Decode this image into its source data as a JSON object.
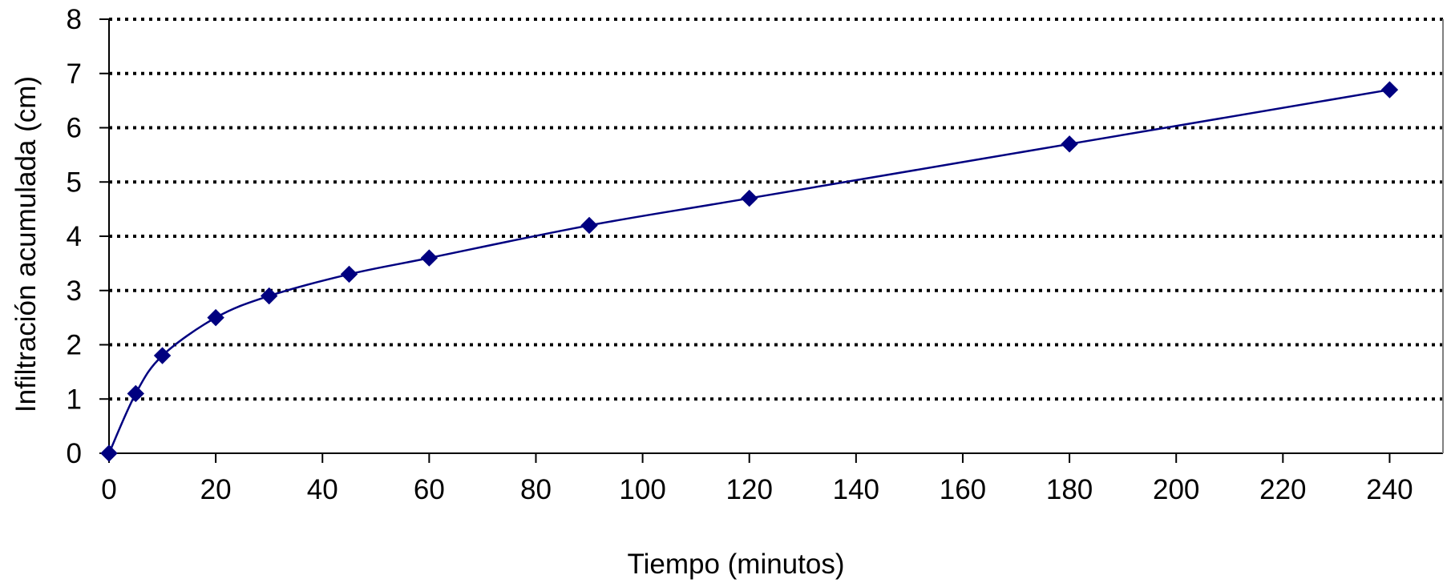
{
  "chart_data": {
    "type": "line",
    "title": "",
    "xlabel": "Tiempo (minutos)",
    "ylabel": "Infiltración acumulada (cm)",
    "xlim": [
      0,
      250
    ],
    "ylim": [
      0,
      8
    ],
    "xticks": [
      0,
      20,
      40,
      60,
      80,
      100,
      120,
      140,
      160,
      180,
      200,
      220,
      240
    ],
    "yticks": [
      0,
      1,
      2,
      3,
      4,
      5,
      6,
      7,
      8
    ],
    "grid": "horizontal dotted",
    "legend": "none",
    "line_color": "#000080",
    "marker": "diamond",
    "series": [
      {
        "x": [
          0,
          5,
          10,
          20,
          30,
          45,
          60,
          90,
          120,
          180,
          240
        ],
        "y": [
          0,
          1.1,
          1.8,
          2.5,
          2.9,
          3.3,
          3.6,
          4.2,
          4.7,
          5.7,
          6.7
        ]
      }
    ]
  }
}
